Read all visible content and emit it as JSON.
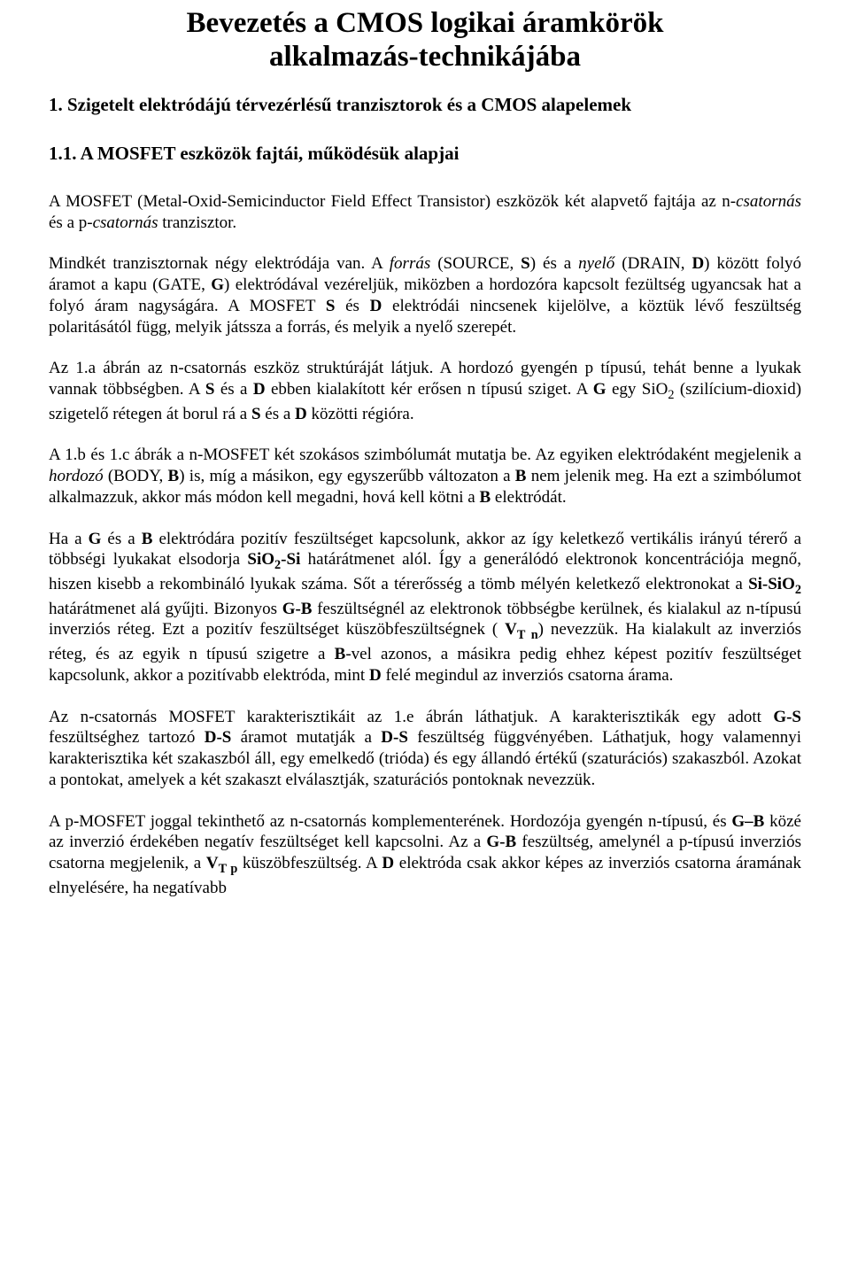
{
  "title_line1": "Bevezetés a CMOS logikai áramkörök",
  "title_line2": "alkalmazás-technikájába",
  "section1_heading": "1. Szigetelt elektródájú térvezérlésű tranzisztorok és a CMOS alapelemek",
  "section11_heading": "1.1. A MOSFET eszközök fajtái, működésük alapjai",
  "p1_a": "A MOSFET (Metal-Oxid-Semicinductor Field Effect Transistor) eszközök két alapvető fajtája az n-",
  "p1_i1": "csatornás",
  "p1_b": " és a p-",
  "p1_i2": "csatornás",
  "p1_c": " tranzisztor.",
  "p2_a": "Mindkét tranzisztornak négy elektródája van. A ",
  "p2_i1": "forrás",
  "p2_b": " (SOURCE, ",
  "p2_bold1": "S",
  "p2_c": ") és a ",
  "p2_i2": "nyelő",
  "p2_d": " (DRAIN, ",
  "p2_bold2": "D",
  "p2_e": ") között folyó áramot  a kapu (GATE, ",
  "p2_bold3": "G",
  "p2_f": ") elektródával vezéreljük, miközben a hordozóra kapcsolt fezültség ugyancsak hat a folyó áram nagyságára. A MOSFET ",
  "p2_bold4": "S",
  "p2_g": " és ",
  "p2_bold5": "D",
  "p2_h": " elektródái nincsenek kijelölve, a köztük lévő feszültség polaritásától függ, melyik játssza a forrás, és melyik a nyelő szerepét.",
  "p3_a": "Az 1.a  ábrán az n-csatornás eszköz struktúráját látjuk. A hordozó gyengén p típusú, tehát benne a lyukak vannak többségben. A ",
  "p3_bold1": "S",
  "p3_b": " és a ",
  "p3_bold2": "D",
  "p3_c": " ebben kialakított kér erősen n típusú sziget. A ",
  "p3_bold3": "G",
  "p3_d": " egy SiO",
  "p3_sub1": "2",
  "p3_e": " (szilícium-dioxid) szigetelő rétegen át borul rá a ",
  "p3_bold4": "S",
  "p3_f": " és a ",
  "p3_bold5": "D",
  "p3_g": " közötti régióra.",
  "p4_a": "A 1.b és 1.c ábrák a n-MOSFET két szokásos szimbólumát mutatja be. Az egyiken elektródaként megjelenik a ",
  "p4_i1": "hordozó",
  "p4_b": " (BODY, ",
  "p4_bold1": "B",
  "p4_c": ") is, míg a másikon, egy egyszerűbb változaton a ",
  "p4_bold2": "B",
  "p4_d": " nem jelenik meg. Ha ezt a szimbólumot alkalmazzuk, akkor más módon kell megadni, hová kell kötni a ",
  "p4_bold3": "B",
  "p4_e": " elektródát.",
  "p5_a": "Ha a ",
  "p5_bold1": "G",
  "p5_b": " és a ",
  "p5_bold2": "B",
  "p5_c": " elektródára pozitív feszültséget kapcsolunk, akkor az így keletkező vertikális irányú térerő a többségi lyukakat elsodorja ",
  "p5_bold3": "SiO",
  "p5_sub1": "2",
  "p5_bold3b": "-Si",
  "p5_d": " határátmenet alól. Így a generálódó elektronok koncentrációja megnő, hiszen kisebb a rekombináló lyukak száma. Sőt a térerősség a tömb mélyén keletkező elektronokat a ",
  "p5_bold4": "Si-SiO",
  "p5_sub2": "2",
  "p5_e": " határátmenet alá gyűjti.  Bizonyos ",
  "p5_bold5": "G-B",
  "p5_f": " feszültségnél az elektronok többségbe kerülnek, és kialakul az n-típusú inverziós réteg. Ezt a pozitív feszültséget küszöbfeszültségnek ( ",
  "p5_bold6": "V",
  "p5_sub3": "T n",
  "p5_g": ") nevezzük. Ha kialakult az inverziós réteg, és az egyik n típusú szigetre a ",
  "p5_bold7": "B",
  "p5_h": "-vel azonos, a másikra pedig ehhez képest pozitív feszültséget kapcsolunk, akkor a pozitívabb elektróda, mint ",
  "p5_bold8": "D",
  "p5_i": " felé megindul az inverziós csatorna árama.",
  "p6_a": "Az n-csatornás MOSFET karakterisztikáit az 1.e ábrán láthatjuk. A karakterisztikák egy adott ",
  "p6_bold1": "G-S",
  "p6_b": " feszültséghez tartozó ",
  "p6_bold2": "D-S",
  "p6_c": " áramot mutatják a ",
  "p6_bold3": "D-S",
  "p6_d": " feszültség függvényében. Láthatjuk, hogy valamennyi karakterisztika két szakaszból áll, egy emelkedő (trióda) és egy állandó értékű (szaturációs) szakaszból. Azokat a pontokat, amelyek a két szakaszt elválasztják, szaturációs pontoknak nevezzük.",
  "p7_a": "A p-MOSFET joggal tekinthető az n-csatornás komplementerének. Hordozója gyengén n-típusú, és ",
  "p7_bold1": "G–B",
  "p7_b": " közé az inverzió érdekében negatív feszültséget kell kapcsolni. Az a ",
  "p7_bold2": "G-B",
  "p7_c": " feszültség, amelynél a p-típusú inverziós csatorna megjelenik, a ",
  "p7_bold3": "V",
  "p7_sub1": "T p",
  "p7_d": " küszöbfeszültség. A ",
  "p7_bold4": "D",
  "p7_e": " elektróda csak akkor képes az inverziós csatorna áramának elnyelésére, ha negatívabb"
}
